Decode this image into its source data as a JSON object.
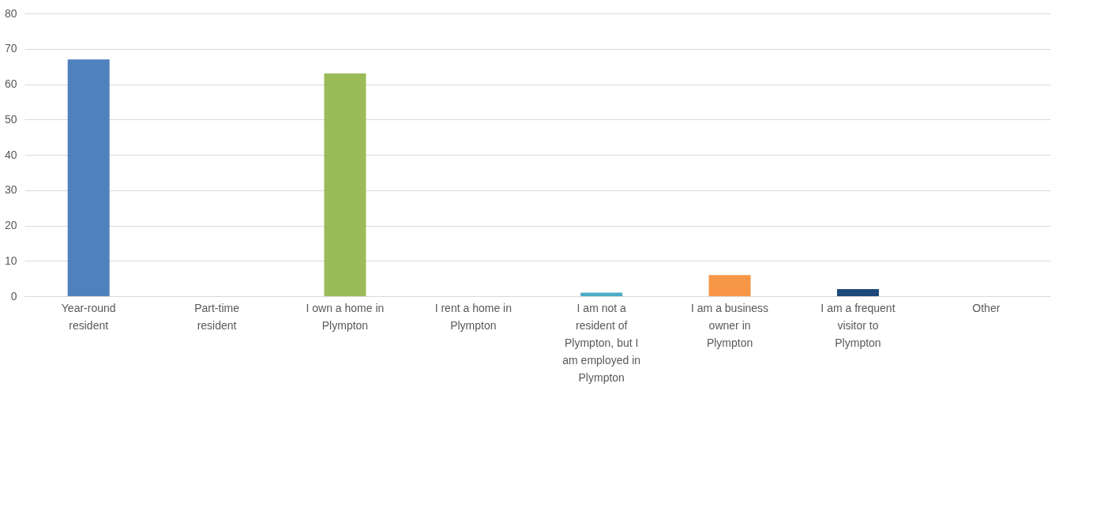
{
  "chart_data": {
    "type": "bar",
    "categories": [
      "Year-round resident",
      "Part-time resident",
      "I own a home in Plympton",
      "I rent a home in Plympton",
      "I am not a resident of Plympton, but I am employed in Plympton",
      "I am a business owner in Plympton",
      "I am a frequent visitor to Plympton",
      "Other"
    ],
    "values": [
      67,
      0,
      63,
      0,
      1,
      6,
      2,
      0
    ],
    "colors": [
      "#4f81bd",
      "#c0504d",
      "#9bbb59",
      "#8064a2",
      "#4bacc6",
      "#f79646",
      "#1f497d",
      "#7f7f7f"
    ],
    "ylim": [
      0,
      80
    ],
    "yticks": [
      0,
      10,
      20,
      30,
      40,
      50,
      60,
      70,
      80
    ],
    "grid": "y"
  }
}
